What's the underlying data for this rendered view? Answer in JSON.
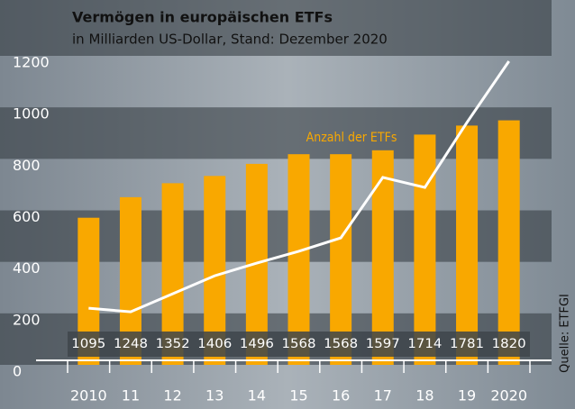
{
  "chart_data": {
    "type": "bar-line",
    "title": "Vermögen in europäischen ETFs",
    "subtitle": "in Milliarden US-Dollar, Stand: Dezember 2020",
    "source": "Quelle: ETFGI",
    "categories": [
      "2010",
      "11",
      "12",
      "13",
      "14",
      "15",
      "16",
      "17",
      "18",
      "19",
      "2020"
    ],
    "series": [
      {
        "name": "Anzahl der ETFs",
        "color": "#f9a800",
        "axis": "y2",
        "kind": "bar",
        "values": [
          1095,
          1248,
          1352,
          1406,
          1496,
          1568,
          1568,
          1597,
          1714,
          1781,
          1820
        ]
      },
      {
        "name": null,
        "color": "#ffffff",
        "kind": "line",
        "values": [
          220,
          206,
          276,
          346,
          395,
          441,
          493,
          728,
          689,
          941,
          1179
        ]
      }
    ],
    "ylim": [
      0,
      1200
    ],
    "yticks": [
      0,
      200,
      400,
      600,
      800,
      1000,
      1200
    ],
    "y2lim": [
      0,
      2300
    ],
    "grid": true
  }
}
